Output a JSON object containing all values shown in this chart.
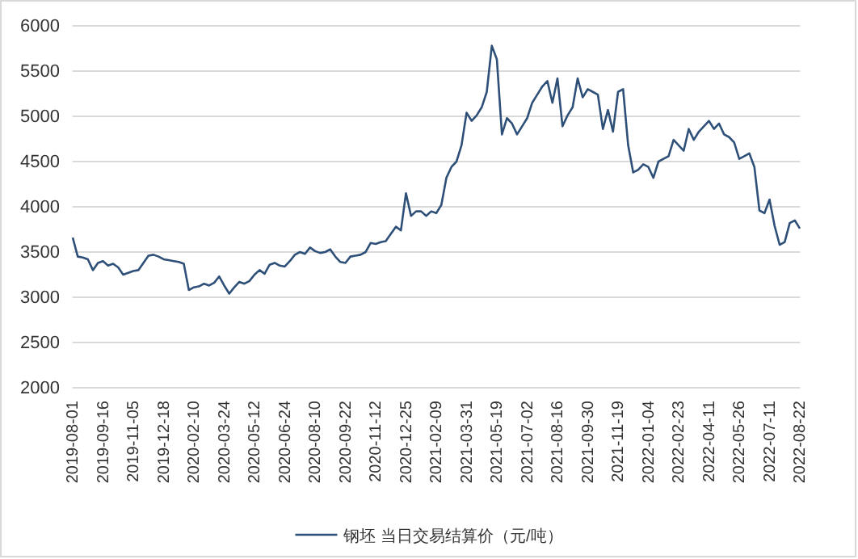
{
  "chart_data": {
    "type": "line",
    "categories": [
      "2019-08-01",
      null,
      null,
      null,
      null,
      null,
      "2019-09-16",
      null,
      null,
      null,
      null,
      null,
      "2019-11-05",
      null,
      null,
      null,
      null,
      null,
      "2019-12-18",
      null,
      null,
      null,
      null,
      null,
      "2020-02-10",
      null,
      null,
      null,
      null,
      null,
      "2020-03-24",
      null,
      null,
      null,
      null,
      null,
      "2020-05-12",
      null,
      null,
      null,
      null,
      null,
      "2020-06-24",
      null,
      null,
      null,
      null,
      null,
      "2020-08-10",
      null,
      null,
      null,
      null,
      null,
      "2020-09-22",
      null,
      null,
      null,
      null,
      null,
      "2020-11-12",
      null,
      null,
      null,
      null,
      null,
      "2020-12-25",
      null,
      null,
      null,
      null,
      null,
      "2021-02-09",
      null,
      null,
      null,
      null,
      null,
      "2021-03-31",
      null,
      null,
      null,
      null,
      null,
      "2021-05-19",
      null,
      null,
      null,
      null,
      null,
      "2021-07-02",
      null,
      null,
      null,
      null,
      null,
      "2021-08-16",
      null,
      null,
      null,
      null,
      null,
      "2021-09-30",
      null,
      null,
      null,
      null,
      null,
      "2021-11-19",
      null,
      null,
      null,
      null,
      null,
      "2022-01-04",
      null,
      null,
      null,
      null,
      null,
      "2022-02-23",
      null,
      null,
      null,
      null,
      null,
      "2022-04-11",
      null,
      null,
      null,
      null,
      null,
      "2022-05-26",
      null,
      null,
      null,
      null,
      null,
      "2022-07-11",
      null,
      null,
      null,
      null,
      null,
      "2022-08-22"
    ],
    "series": [
      {
        "name": "钢坯 当日交易结算价（元/吨）",
        "color": "#2e5078",
        "values": [
          3660,
          3450,
          3440,
          3420,
          3300,
          3380,
          3400,
          3350,
          3370,
          3330,
          3250,
          3270,
          3290,
          3300,
          3380,
          3460,
          3470,
          3450,
          3420,
          3410,
          3400,
          3390,
          3370,
          3080,
          3110,
          3120,
          3150,
          3130,
          3160,
          3230,
          3130,
          3040,
          3110,
          3170,
          3150,
          3180,
          3250,
          3300,
          3260,
          3360,
          3380,
          3350,
          3340,
          3400,
          3470,
          3500,
          3480,
          3550,
          3510,
          3490,
          3500,
          3530,
          3450,
          3390,
          3380,
          3450,
          3460,
          3470,
          3500,
          3600,
          3590,
          3610,
          3620,
          3700,
          3780,
          3740,
          4150,
          3900,
          3950,
          3950,
          3900,
          3950,
          3930,
          4020,
          4320,
          4440,
          4500,
          4680,
          5040,
          4950,
          5010,
          5100,
          5270,
          5780,
          5630,
          4800,
          4980,
          4920,
          4800,
          4890,
          4980,
          5150,
          5240,
          5330,
          5390,
          5150,
          5420,
          4890,
          5010,
          5100,
          5420,
          5210,
          5300,
          5270,
          5240,
          4860,
          5070,
          4830,
          5270,
          5300,
          4680,
          4380,
          4410,
          4470,
          4440,
          4320,
          4500,
          4530,
          4560,
          4740,
          4680,
          4620,
          4860,
          4740,
          4830,
          4890,
          4950,
          4860,
          4920,
          4800,
          4770,
          4710,
          4530,
          4560,
          4590,
          4440,
          3960,
          3930,
          4080,
          3790,
          3580,
          3610,
          3820,
          3850,
          3760
        ]
      }
    ],
    "ylim": [
      2000,
      6000
    ],
    "yticks": [
      2000,
      2500,
      3000,
      3500,
      4000,
      4500,
      5000,
      5500,
      6000
    ],
    "grid": "y",
    "legend": "bottom",
    "marker": "none",
    "line_style": "solid"
  }
}
